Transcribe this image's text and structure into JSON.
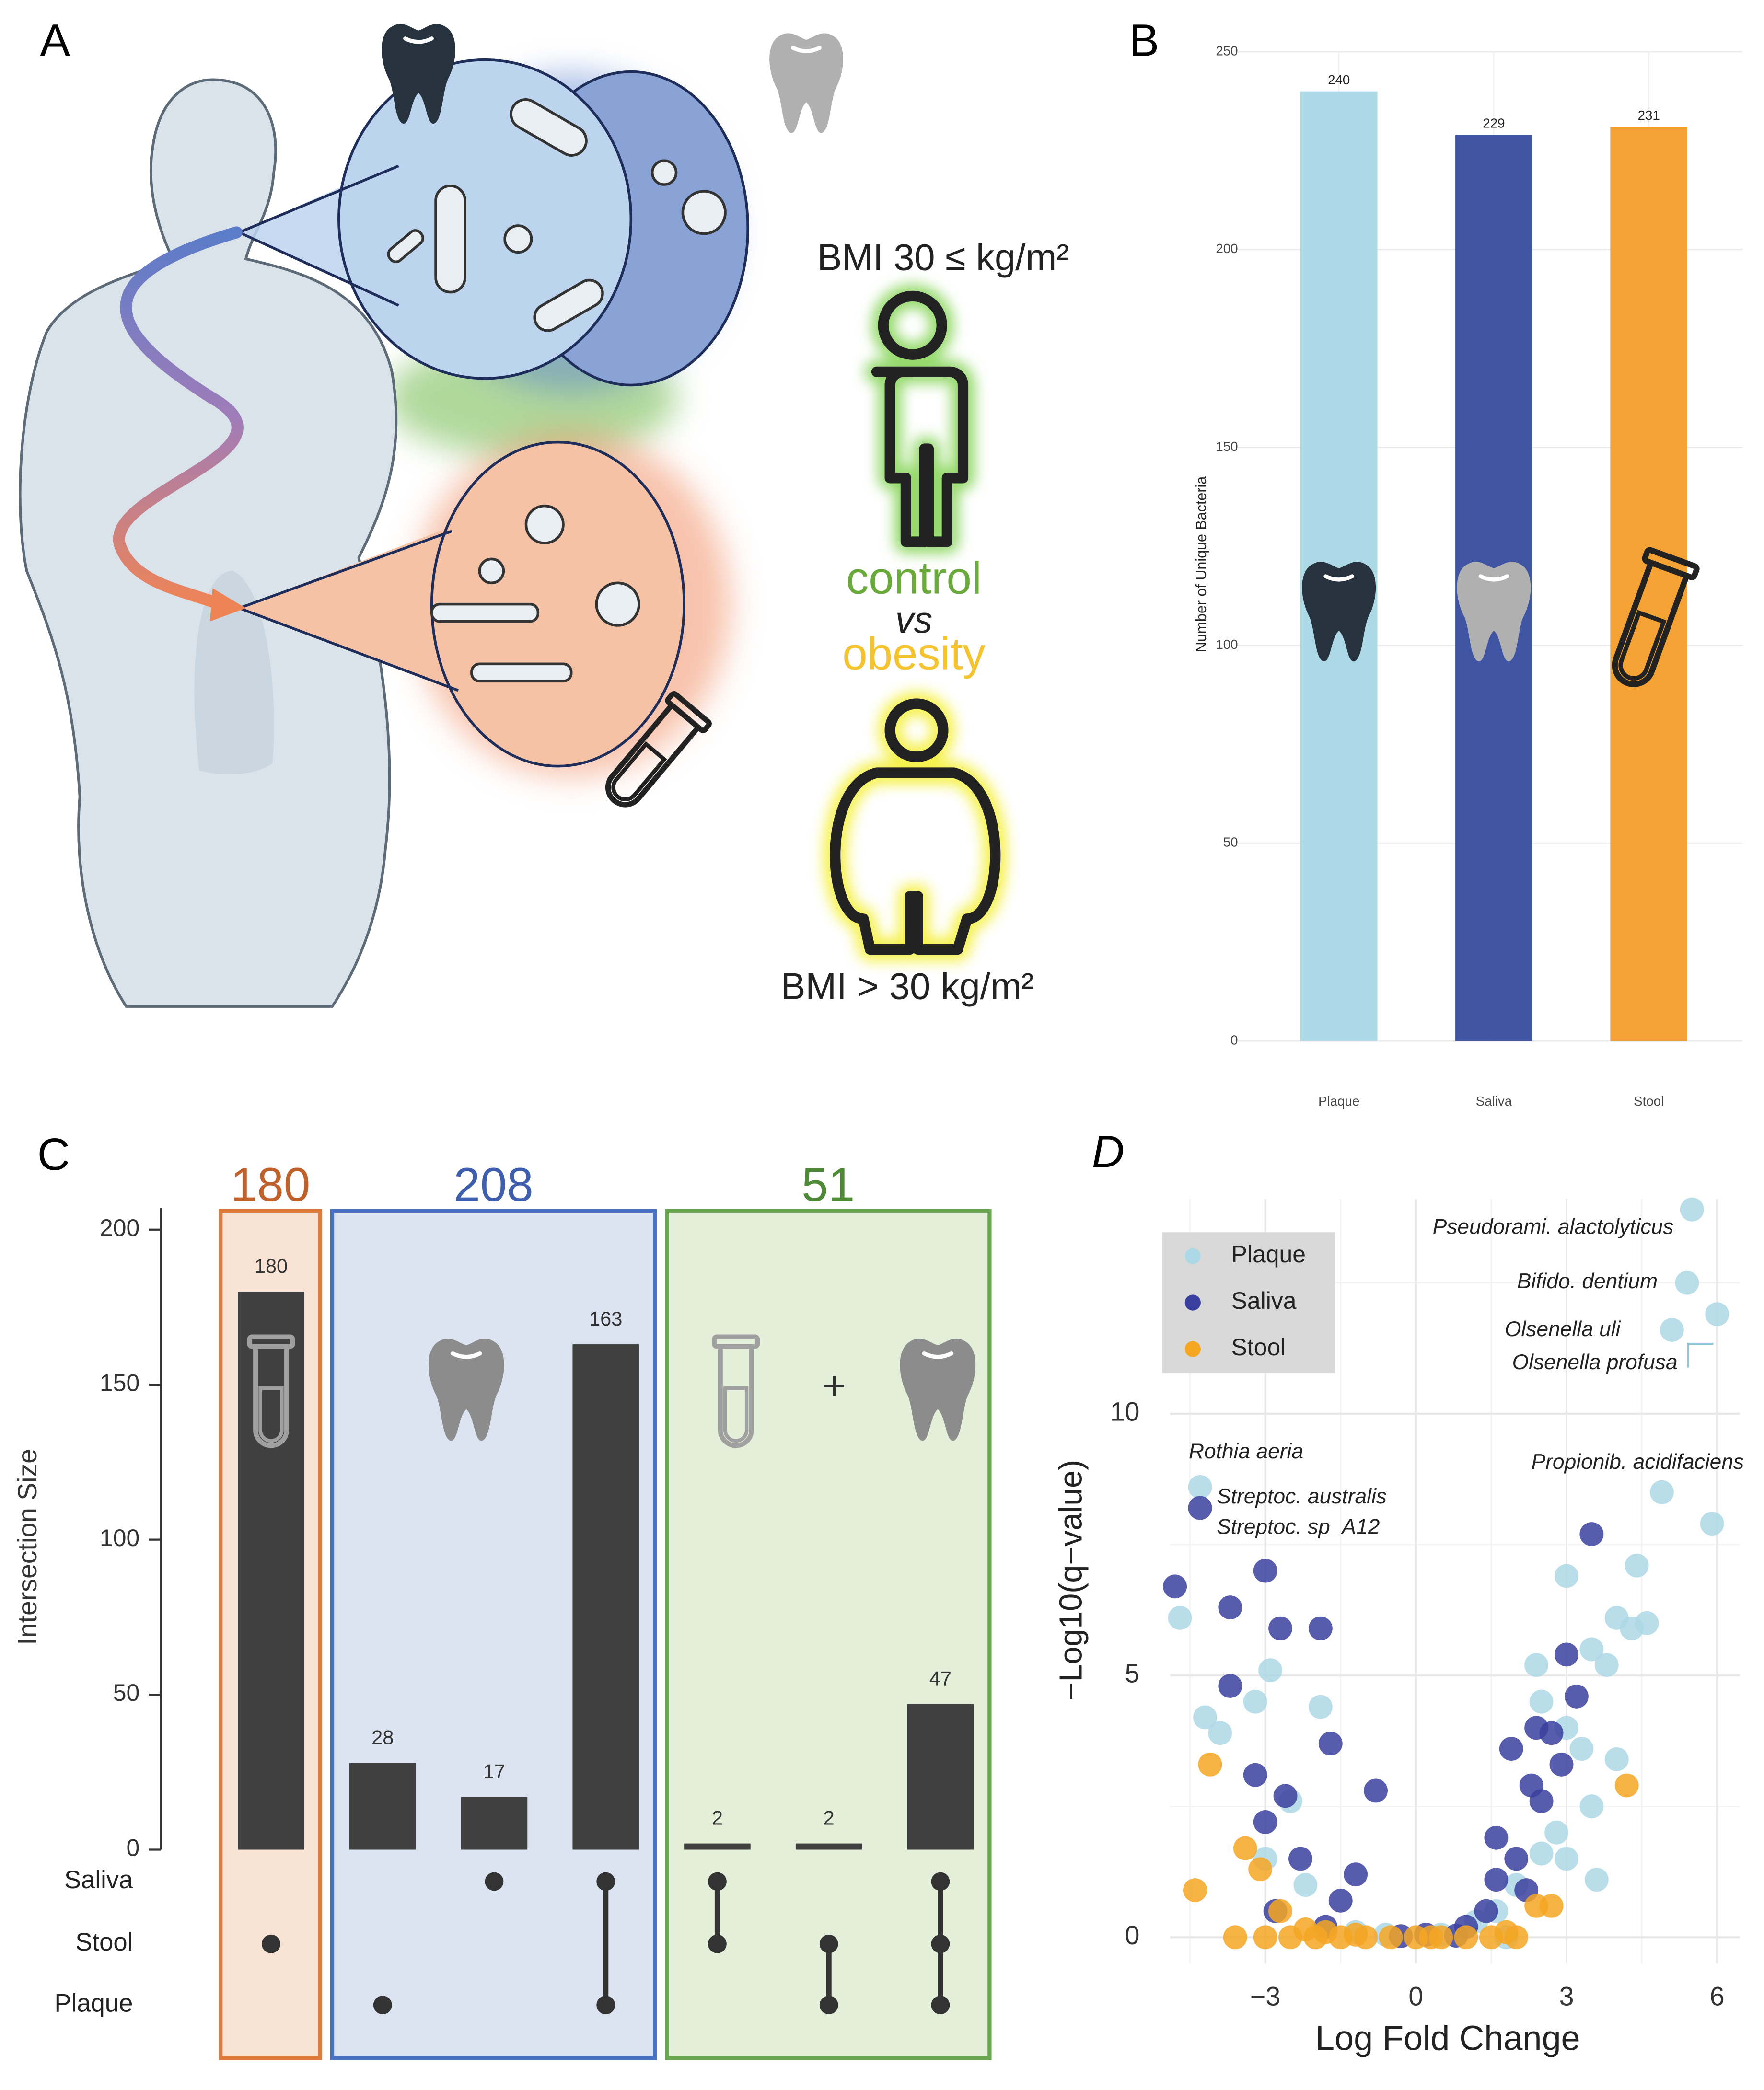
{
  "panel_labels": [
    "A",
    "B",
    "C",
    "D"
  ],
  "panel_a": {
    "bmi_normal": "BMI  30 ≤ kg/m²",
    "control": "control",
    "vs": "vs",
    "obesity": "obesity",
    "bmi_obese": "BMI > 30 kg/m²"
  },
  "chart_data": [
    {
      "type": "bar",
      "ylabel": "Number of Unique Bacteria",
      "categories": [
        "Plaque",
        "Saliva",
        "Stool"
      ],
      "values": [
        240,
        229,
        231
      ],
      "colors": [
        "#add8e6",
        "#3f55a3",
        "#f4a233"
      ],
      "ylim": [
        0,
        250
      ],
      "yticks": [
        0,
        50,
        100,
        150,
        200,
        250
      ],
      "grid": true
    },
    {
      "type": "upset",
      "ylabel": "Intersection Size",
      "sets": [
        "Saliva",
        "Stool",
        "Plaque"
      ],
      "values": [
        180,
        28,
        17,
        163,
        2,
        2,
        47
      ],
      "members": [
        [
          1
        ],
        [
          2
        ],
        [
          0
        ],
        [
          0,
          2
        ],
        [
          0,
          1
        ],
        [
          1,
          2
        ],
        [
          0,
          1,
          2
        ]
      ],
      "color": "#404040",
      "ylim": [
        0,
        207
      ],
      "yticks": [
        0,
        50,
        100,
        150,
        200
      ],
      "groups": [
        {
          "total": 180,
          "color": "#e07b39",
          "fill": "#f8e3d4",
          "text_color": "#c0602b",
          "first": 0,
          "last": 0
        },
        {
          "total": 208,
          "color": "#4a72c4",
          "fill": "#dce3f1",
          "text_color": "#3f5fae",
          "first": 1,
          "last": 3
        },
        {
          "total": 51,
          "color": "#6aa84f",
          "fill": "#e3efd9",
          "text_color": "#4e8a35",
          "first": 4,
          "last": 6
        }
      ]
    },
    {
      "type": "scatter",
      "xlabel": "Log Fold Change",
      "ylabel": "−Log10(q−value)",
      "legend": "top-left",
      "grid": true,
      "xlim": [
        -4.9,
        6.45
      ],
      "ylim": [
        -0.5,
        14.1
      ],
      "xticks": [
        {
          "value": -3,
          "label": "−3"
        },
        0,
        3,
        6
      ],
      "yticks": [
        0,
        5,
        10
      ],
      "xminor": [
        -4.5,
        -1.5,
        1.5,
        4.5
      ],
      "yminor": [
        2.5,
        7.5,
        12.5
      ],
      "annotations": [
        "Pseudorami. alactolyticus",
        "Bifido. dentium",
        "Olsenella uli",
        "Olsenella profusa",
        "Rothia aeria",
        "Streptoc. australis",
        "Streptoc. sp_A12",
        "Propionib. acidifaciens"
      ],
      "series": [
        {
          "name": "Plaque",
          "color": "#add8e6",
          "x": [
            5.5,
            5.4,
            6,
            5.1,
            -4.3,
            5.9,
            4.9,
            4.4,
            4.6,
            3.0,
            4.0,
            3.5,
            2.4,
            3.8,
            2.5,
            3.0,
            3.3,
            4.0,
            3.5,
            2.8,
            3.0,
            2.5,
            2.0,
            1.6,
            1.2,
            -2.9,
            -3.2,
            -4.2,
            -3.9,
            -2.5,
            -2.2,
            -3.0,
            -4.7,
            -1.9,
            0.5,
            -0.6,
            1.8,
            -1.2,
            3.6,
            4.3
          ],
          "y": [
            13.9,
            12.5,
            11.9,
            11.6,
            8.6,
            7.9,
            8.5,
            7.1,
            6.0,
            6.9,
            6.1,
            5.5,
            5.2,
            5.2,
            4.5,
            4.0,
            3.6,
            3.4,
            2.5,
            2.0,
            1.5,
            1.6,
            1.0,
            0.5,
            0.3,
            5.1,
            4.5,
            4.2,
            3.9,
            2.6,
            1.0,
            1.5,
            6.1,
            4.4,
            0.05,
            0.05,
            0.0,
            0.1,
            1.1,
            5.9
          ]
        },
        {
          "name": "Saliva",
          "color": "#3a3f9e",
          "x": [
            -4.3,
            -4.8,
            -3.0,
            -3.7,
            -2.7,
            -1.9,
            -3.7,
            -3.2,
            -2.6,
            -3.0,
            -0.8,
            -1.7,
            -2.3,
            -1.2,
            -2.8,
            -1.5,
            3.5,
            3.0,
            2.4,
            1.9,
            2.7,
            2.3,
            2.5,
            1.6,
            2.0,
            1.6,
            2.2,
            1.4,
            1.0,
            0.2,
            -0.3,
            0.8,
            -1.8,
            3.2,
            2.9
          ],
          "y": [
            8.2,
            6.7,
            7.0,
            6.3,
            5.9,
            5.9,
            4.8,
            3.1,
            2.7,
            2.2,
            2.8,
            3.7,
            1.5,
            1.2,
            0.5,
            0.7,
            7.7,
            5.4,
            4.0,
            3.6,
            3.9,
            2.9,
            2.6,
            1.9,
            1.5,
            1.1,
            0.9,
            0.5,
            0.2,
            0.05,
            0.02,
            0.03,
            0.2,
            4.6,
            3.3
          ]
        },
        {
          "name": "Stool",
          "color": "#f5a623",
          "x": [
            -4.1,
            -3.1,
            -3.4,
            -4.4,
            -2.7,
            -3.0,
            -2.5,
            -2.0,
            -1.5,
            -1.0,
            -0.5,
            0,
            0.5,
            1.0,
            1.5,
            2.0,
            -3.6,
            -2.2,
            -1.8,
            2.4,
            2.7,
            4.2,
            1.8,
            -1.2,
            0.3
          ],
          "y": [
            3.3,
            1.3,
            1.7,
            0.9,
            0.5,
            0,
            0,
            0,
            0,
            0,
            0,
            0,
            0,
            0,
            0,
            0,
            0,
            0.15,
            0.1,
            0.6,
            0.6,
            2.9,
            0.1,
            0.05,
            0
          ]
        }
      ]
    }
  ]
}
